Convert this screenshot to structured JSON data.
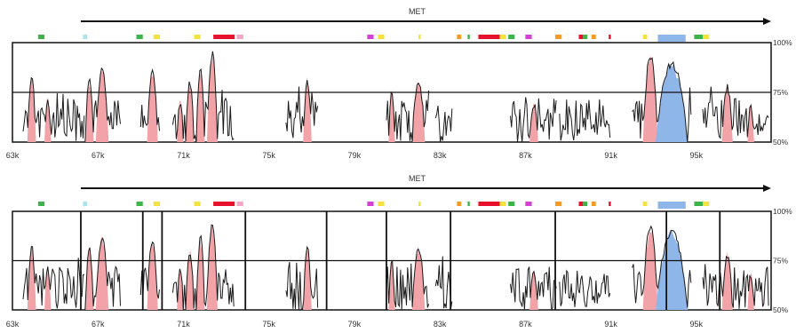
{
  "colors": {
    "trace": "#1a1a1a",
    "conserved_fill": "#f1a3a8",
    "exon_fill": "#8fb6e8",
    "frame": "#111111",
    "axis_text": "#333333"
  },
  "annotation_colors": {
    "green": "#3cb44b",
    "lightblue": "#a6e3f0",
    "yellow": "#f3e33c",
    "red": "#e8112d",
    "pink": "#f5a3c7",
    "magenta": "#d43fd4",
    "orange": "#f59b22",
    "blue": "#8fb6e8"
  },
  "chart_data": [
    {
      "type": "area",
      "gene": "MET",
      "x_unit": "kb",
      "xlim": [
        63,
        98.5
      ],
      "x_ticks": [
        63,
        67,
        71,
        75,
        79,
        83,
        87,
        91,
        95
      ],
      "x_tick_labels": [
        "63k",
        "67k",
        "71k",
        "75k",
        "79k",
        "83k",
        "87k",
        "91k",
        "95k"
      ],
      "ylim": [
        50,
        100
      ],
      "y_ticks": [
        50,
        75,
        100
      ],
      "y_tick_labels": [
        "50%",
        "75%",
        "100%"
      ],
      "threshold": 75,
      "gene_arrow": {
        "start": 66.2,
        "end": 98.5,
        "direction": "right"
      },
      "annotations": [
        {
          "start": 64.2,
          "end": 64.5,
          "color": "green"
        },
        {
          "start": 66.3,
          "end": 66.5,
          "color": "lightblue"
        },
        {
          "start": 68.8,
          "end": 69.1,
          "color": "green"
        },
        {
          "start": 69.6,
          "end": 69.9,
          "color": "yellow"
        },
        {
          "start": 71.5,
          "end": 71.8,
          "color": "yellow"
        },
        {
          "start": 72.4,
          "end": 73.4,
          "color": "red"
        },
        {
          "start": 73.5,
          "end": 73.8,
          "color": "pink"
        },
        {
          "start": 79.6,
          "end": 79.9,
          "color": "magenta"
        },
        {
          "start": 80.1,
          "end": 80.4,
          "color": "yellow"
        },
        {
          "start": 82.0,
          "end": 82.1,
          "color": "yellow"
        },
        {
          "start": 83.8,
          "end": 84.0,
          "color": "orange"
        },
        {
          "start": 84.3,
          "end": 84.4,
          "color": "green"
        },
        {
          "start": 84.8,
          "end": 85.8,
          "color": "red"
        },
        {
          "start": 85.8,
          "end": 86.1,
          "color": "yellow"
        },
        {
          "start": 86.2,
          "end": 86.5,
          "color": "green"
        },
        {
          "start": 87.0,
          "end": 87.3,
          "color": "magenta"
        },
        {
          "start": 88.4,
          "end": 88.7,
          "color": "orange"
        },
        {
          "start": 89.5,
          "end": 89.7,
          "color": "red"
        },
        {
          "start": 89.7,
          "end": 89.9,
          "color": "green"
        },
        {
          "start": 90.1,
          "end": 90.3,
          "color": "orange"
        },
        {
          "start": 90.9,
          "end": 91.0,
          "color": "red"
        },
        {
          "start": 92.5,
          "end": 92.7,
          "color": "yellow"
        },
        {
          "start": 93.2,
          "end": 94.5,
          "color": "blue"
        },
        {
          "start": 94.9,
          "end": 95.3,
          "color": "green"
        },
        {
          "start": 95.3,
          "end": 95.6,
          "color": "yellow"
        }
      ],
      "conserved_regions": [
        {
          "start": 63.7,
          "end": 64.1,
          "peak": 84
        },
        {
          "start": 64.5,
          "end": 64.8,
          "peak": 74
        },
        {
          "start": 66.4,
          "end": 66.8,
          "peak": 82
        },
        {
          "start": 66.9,
          "end": 67.5,
          "peak": 89
        },
        {
          "start": 69.3,
          "end": 69.8,
          "peak": 88
        },
        {
          "start": 70.7,
          "end": 71.0,
          "peak": 72
        },
        {
          "start": 71.1,
          "end": 71.5,
          "peak": 82
        },
        {
          "start": 71.6,
          "end": 72.0,
          "peak": 88
        },
        {
          "start": 72.1,
          "end": 72.6,
          "peak": 96
        },
        {
          "start": 76.6,
          "end": 77.0,
          "peak": 83
        },
        {
          "start": 80.6,
          "end": 80.9,
          "peak": 76
        },
        {
          "start": 81.7,
          "end": 82.3,
          "peak": 83
        },
        {
          "start": 87.2,
          "end": 87.6,
          "peak": 71
        },
        {
          "start": 92.5,
          "end": 93.2,
          "peak": 95
        },
        {
          "start": 96.2,
          "end": 96.7,
          "peak": 80
        },
        {
          "start": 97.4,
          "end": 97.7,
          "peak": 70
        }
      ],
      "exon_regions": [
        {
          "start": 93.1,
          "end": 94.6,
          "peak": 91
        }
      ],
      "trace_segments": [
        {
          "start": 63.5,
          "end": 66.4
        },
        {
          "start": 66.4,
          "end": 68.1
        },
        {
          "start": 69.0,
          "end": 69.9
        },
        {
          "start": 70.5,
          "end": 73.4
        },
        {
          "start": 75.8,
          "end": 77.3
        },
        {
          "start": 80.5,
          "end": 82.5
        },
        {
          "start": 82.8,
          "end": 83.6
        },
        {
          "start": 86.3,
          "end": 88.5
        },
        {
          "start": 88.6,
          "end": 91.0
        },
        {
          "start": 92.0,
          "end": 94.8
        },
        {
          "start": 95.3,
          "end": 98.4
        }
      ],
      "vertical_markers": []
    },
    {
      "type": "area",
      "gene": "MET",
      "x_unit": "kb",
      "xlim": [
        63,
        98.5
      ],
      "x_ticks": [
        63,
        67,
        71,
        75,
        79,
        83,
        87,
        91,
        95
      ],
      "x_tick_labels": [
        "63k",
        "67k",
        "71k",
        "75k",
        "79k",
        "83k",
        "87k",
        "91k",
        "95k"
      ],
      "ylim": [
        50,
        100
      ],
      "y_ticks": [
        50,
        75,
        100
      ],
      "y_tick_labels": [
        "50%",
        "75%",
        "100%"
      ],
      "threshold": 75,
      "gene_arrow": {
        "start": 66.2,
        "end": 98.5,
        "direction": "right"
      },
      "annotations": [
        {
          "start": 64.2,
          "end": 64.5,
          "color": "green"
        },
        {
          "start": 66.3,
          "end": 66.5,
          "color": "lightblue"
        },
        {
          "start": 68.8,
          "end": 69.1,
          "color": "green"
        },
        {
          "start": 69.6,
          "end": 69.9,
          "color": "yellow"
        },
        {
          "start": 71.5,
          "end": 71.8,
          "color": "yellow"
        },
        {
          "start": 72.4,
          "end": 73.4,
          "color": "red"
        },
        {
          "start": 73.5,
          "end": 73.8,
          "color": "pink"
        },
        {
          "start": 79.6,
          "end": 79.9,
          "color": "magenta"
        },
        {
          "start": 80.1,
          "end": 80.4,
          "color": "yellow"
        },
        {
          "start": 82.0,
          "end": 82.1,
          "color": "yellow"
        },
        {
          "start": 83.8,
          "end": 84.0,
          "color": "orange"
        },
        {
          "start": 84.3,
          "end": 84.4,
          "color": "green"
        },
        {
          "start": 84.8,
          "end": 85.8,
          "color": "red"
        },
        {
          "start": 85.8,
          "end": 86.1,
          "color": "yellow"
        },
        {
          "start": 86.2,
          "end": 86.5,
          "color": "green"
        },
        {
          "start": 87.0,
          "end": 87.3,
          "color": "magenta"
        },
        {
          "start": 88.4,
          "end": 88.7,
          "color": "orange"
        },
        {
          "start": 89.5,
          "end": 89.7,
          "color": "red"
        },
        {
          "start": 89.7,
          "end": 89.9,
          "color": "green"
        },
        {
          "start": 90.1,
          "end": 90.3,
          "color": "orange"
        },
        {
          "start": 90.9,
          "end": 91.0,
          "color": "red"
        },
        {
          "start": 92.5,
          "end": 92.7,
          "color": "yellow"
        },
        {
          "start": 93.2,
          "end": 94.5,
          "color": "blue"
        },
        {
          "start": 94.9,
          "end": 95.3,
          "color": "green"
        },
        {
          "start": 95.3,
          "end": 95.6,
          "color": "yellow"
        }
      ],
      "conserved_regions": [
        {
          "start": 63.7,
          "end": 64.1,
          "peak": 84
        },
        {
          "start": 64.5,
          "end": 64.8,
          "peak": 74
        },
        {
          "start": 66.4,
          "end": 66.8,
          "peak": 82
        },
        {
          "start": 66.9,
          "end": 67.5,
          "peak": 89
        },
        {
          "start": 69.3,
          "end": 69.8,
          "peak": 88
        },
        {
          "start": 70.7,
          "end": 71.0,
          "peak": 72
        },
        {
          "start": 71.1,
          "end": 71.5,
          "peak": 82
        },
        {
          "start": 71.6,
          "end": 72.0,
          "peak": 88
        },
        {
          "start": 72.1,
          "end": 72.6,
          "peak": 96
        },
        {
          "start": 76.6,
          "end": 77.0,
          "peak": 83
        },
        {
          "start": 80.6,
          "end": 80.9,
          "peak": 76
        },
        {
          "start": 81.7,
          "end": 82.3,
          "peak": 83
        },
        {
          "start": 87.2,
          "end": 87.6,
          "peak": 71
        },
        {
          "start": 92.5,
          "end": 93.2,
          "peak": 95
        },
        {
          "start": 96.2,
          "end": 96.7,
          "peak": 80
        },
        {
          "start": 97.4,
          "end": 97.7,
          "peak": 70
        }
      ],
      "exon_regions": [
        {
          "start": 93.1,
          "end": 94.6,
          "peak": 91
        }
      ],
      "trace_segments": [
        {
          "start": 63.5,
          "end": 66.4
        },
        {
          "start": 66.4,
          "end": 68.1
        },
        {
          "start": 69.0,
          "end": 69.9
        },
        {
          "start": 70.5,
          "end": 73.4
        },
        {
          "start": 75.8,
          "end": 77.3
        },
        {
          "start": 80.5,
          "end": 82.5
        },
        {
          "start": 82.8,
          "end": 83.6
        },
        {
          "start": 86.3,
          "end": 88.5
        },
        {
          "start": 88.6,
          "end": 91.0
        },
        {
          "start": 92.0,
          "end": 94.8
        },
        {
          "start": 95.3,
          "end": 98.4
        }
      ],
      "vertical_markers": [
        66.2,
        69.1,
        70.0,
        73.9,
        77.7,
        80.5,
        83.5,
        88.4,
        93.6,
        96.1
      ]
    }
  ]
}
